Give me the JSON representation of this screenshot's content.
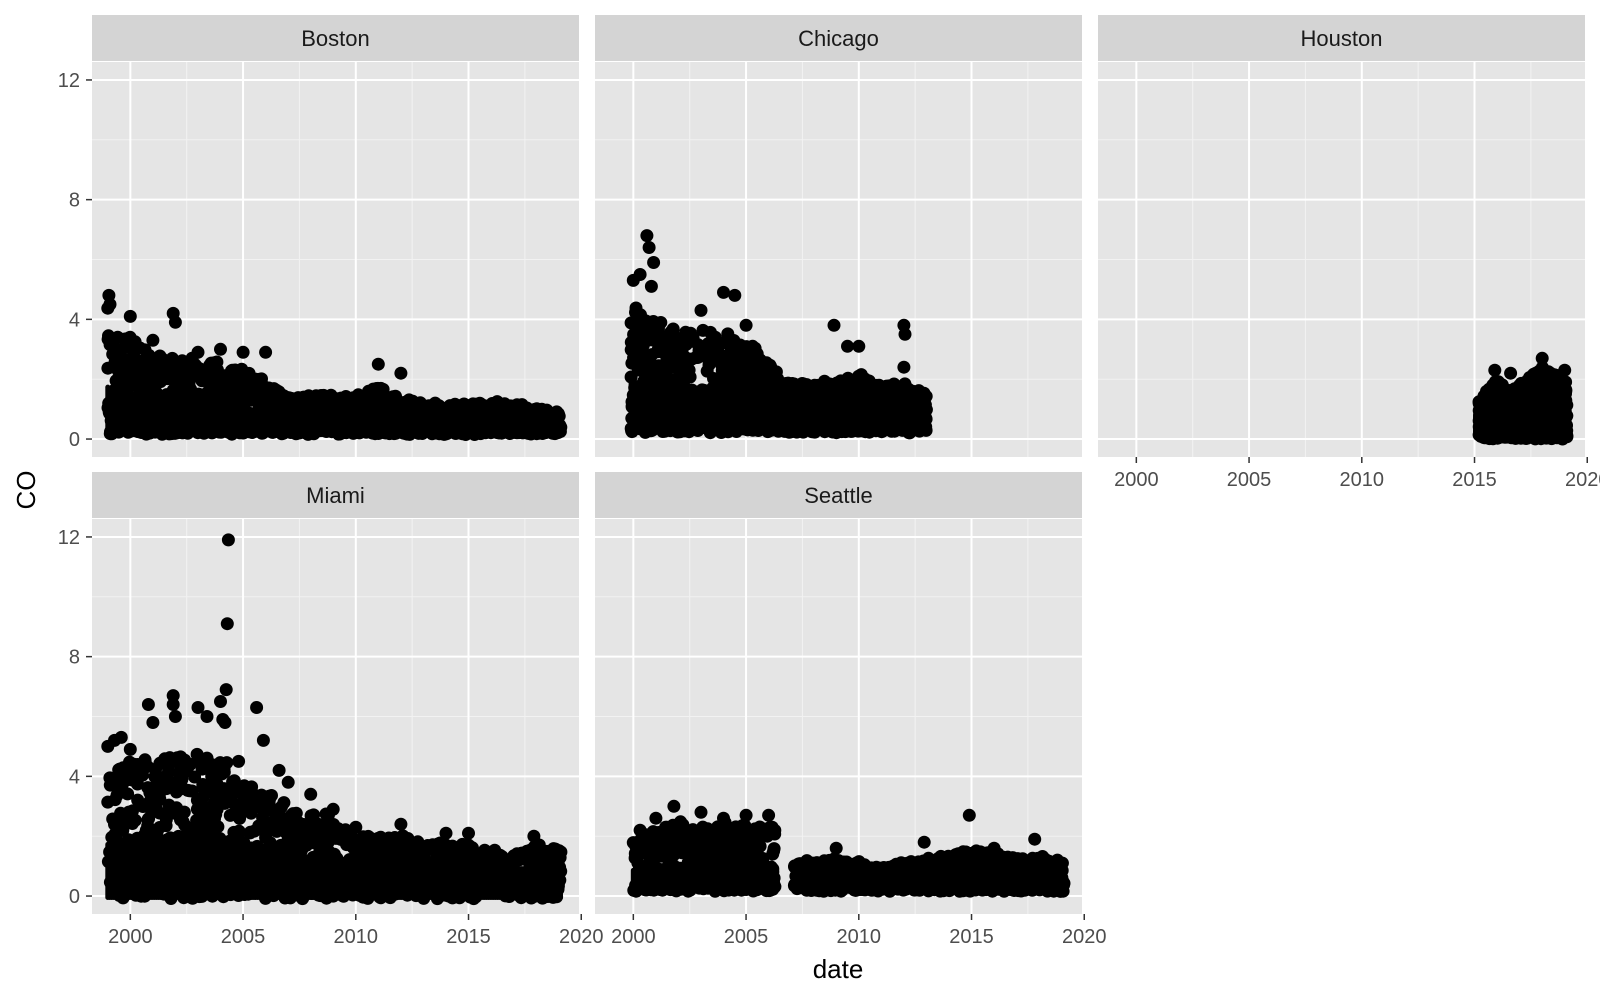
{
  "chart_data": {
    "type": "scatter",
    "layout": "facet_wrap",
    "title": "",
    "xlabel": "date",
    "ylabel": "CO",
    "xlim": [
      1998.3,
      2019.9
    ],
    "ylim": [
      -0.6,
      12.6
    ],
    "x_ticks": [
      2000,
      2005,
      2010,
      2015,
      2020
    ],
    "y_ticks": [
      0,
      4,
      8,
      12
    ],
    "grid": true,
    "point_color": "#000000",
    "panel_background": "#e5e5e5",
    "strip_background": "#d4d4d4",
    "grid_color": "#ffffff",
    "facets": [
      {
        "name": "Boston",
        "coverage": [
          1999.0,
          2019.1
        ],
        "baseline": [
          0.15,
          0.3
        ],
        "envelope": [
          [
            1999.0,
            4.4
          ],
          [
            1999.3,
            3.2
          ],
          [
            2000.0,
            3.4
          ],
          [
            2001.0,
            2.7
          ],
          [
            2002.0,
            2.6
          ],
          [
            2003.0,
            2.6
          ],
          [
            2004.0,
            2.5
          ],
          [
            2005.0,
            2.4
          ],
          [
            2006.0,
            2.0
          ],
          [
            2007.0,
            1.5
          ],
          [
            2008.0,
            1.4
          ],
          [
            2009.0,
            1.4
          ],
          [
            2010.0,
            1.4
          ],
          [
            2011.0,
            1.8
          ],
          [
            2012.0,
            1.4
          ],
          [
            2013.0,
            1.2
          ],
          [
            2014.0,
            1.1
          ],
          [
            2015.0,
            1.2
          ],
          [
            2016.0,
            1.2
          ],
          [
            2017.0,
            1.2
          ],
          [
            2018.0,
            1.0
          ],
          [
            2019.1,
            0.9
          ]
        ],
        "outliers": [
          [
            1999.05,
            4.8
          ],
          [
            1999.1,
            4.5
          ],
          [
            2000.0,
            4.1
          ],
          [
            2001.0,
            3.3
          ],
          [
            2001.9,
            4.2
          ],
          [
            2002.0,
            3.9
          ],
          [
            2003.0,
            2.9
          ],
          [
            2004.0,
            3.0
          ],
          [
            2005.0,
            2.9
          ],
          [
            2006.0,
            2.9
          ],
          [
            2011.0,
            2.5
          ],
          [
            2012.0,
            2.2
          ]
        ]
      },
      {
        "name": "Chicago",
        "coverage": [
          1999.9,
          2013.0
        ],
        "baseline": [
          0.2,
          0.5
        ],
        "envelope": [
          [
            1999.9,
            4.6
          ],
          [
            2000.5,
            4.2
          ],
          [
            2001.0,
            3.9
          ],
          [
            2002.0,
            3.5
          ],
          [
            2003.0,
            3.5
          ],
          [
            2004.0,
            3.5
          ],
          [
            2005.0,
            3.2
          ],
          [
            2006.0,
            2.5
          ],
          [
            2007.0,
            2.0
          ],
          [
            2008.0,
            1.8
          ],
          [
            2009.0,
            1.9
          ],
          [
            2010.0,
            2.2
          ],
          [
            2011.0,
            1.8
          ],
          [
            2012.0,
            1.9
          ],
          [
            2013.0,
            1.5
          ]
        ],
        "outliers": [
          [
            2000.0,
            5.3
          ],
          [
            2000.3,
            5.5
          ],
          [
            2000.6,
            6.8
          ],
          [
            2000.7,
            6.4
          ],
          [
            2000.9,
            5.9
          ],
          [
            2000.8,
            5.1
          ],
          [
            2003.0,
            4.3
          ],
          [
            2004.0,
            4.9
          ],
          [
            2004.5,
            4.8
          ],
          [
            2005.0,
            3.8
          ],
          [
            2008.9,
            3.8
          ],
          [
            2009.5,
            3.1
          ],
          [
            2010.0,
            3.1
          ],
          [
            2012.0,
            3.8
          ],
          [
            2012.05,
            3.5
          ],
          [
            2012.0,
            2.4
          ]
        ]
      },
      {
        "name": "Houston",
        "coverage": [
          2015.2,
          2019.1
        ],
        "baseline": [
          0.0,
          0.3
        ],
        "envelope": [
          [
            2015.2,
            1.2
          ],
          [
            2016.0,
            2.0
          ],
          [
            2016.5,
            1.6
          ],
          [
            2017.0,
            1.8
          ],
          [
            2018.0,
            2.4
          ],
          [
            2019.1,
            1.9
          ]
        ],
        "outliers": [
          [
            2015.9,
            2.3
          ],
          [
            2016.6,
            2.2
          ],
          [
            2018.0,
            2.7
          ],
          [
            2019.0,
            2.3
          ]
        ]
      },
      {
        "name": "Miami",
        "coverage": [
          1999.0,
          2019.1
        ],
        "baseline": [
          -0.1,
          0.5
        ],
        "envelope": [
          [
            1999.0,
            4.0
          ],
          [
            2000.0,
            4.5
          ],
          [
            2001.0,
            4.6
          ],
          [
            2002.0,
            4.7
          ],
          [
            2003.0,
            4.5
          ],
          [
            2004.0,
            4.5
          ],
          [
            2005.0,
            3.6
          ],
          [
            2006.0,
            3.3
          ],
          [
            2007.0,
            3.0
          ],
          [
            2008.0,
            2.7
          ],
          [
            2009.0,
            2.6
          ],
          [
            2010.0,
            2.0
          ],
          [
            2011.0,
            1.9
          ],
          [
            2012.0,
            2.0
          ],
          [
            2013.0,
            1.7
          ],
          [
            2014.0,
            1.7
          ],
          [
            2015.0,
            1.7
          ],
          [
            2016.0,
            1.5
          ],
          [
            2017.0,
            1.4
          ],
          [
            2018.0,
            1.7
          ],
          [
            2019.1,
            1.6
          ]
        ],
        "outliers": [
          [
            1999.0,
            5.0
          ],
          [
            1999.3,
            5.2
          ],
          [
            1999.6,
            5.3
          ],
          [
            2000.0,
            4.9
          ],
          [
            2000.8,
            6.4
          ],
          [
            2001.0,
            5.8
          ],
          [
            2001.9,
            6.7
          ],
          [
            2001.9,
            6.4
          ],
          [
            2002.0,
            6.0
          ],
          [
            2003.0,
            6.3
          ],
          [
            2003.4,
            6.0
          ],
          [
            2004.0,
            6.5
          ],
          [
            2004.1,
            5.9
          ],
          [
            2004.2,
            5.8
          ],
          [
            2004.25,
            6.9
          ],
          [
            2004.3,
            9.1
          ],
          [
            2004.35,
            11.9
          ],
          [
            2004.8,
            4.5
          ],
          [
            2005.6,
            6.3
          ],
          [
            2005.9,
            5.2
          ],
          [
            2006.6,
            4.2
          ],
          [
            2007.0,
            3.8
          ],
          [
            2008.0,
            3.4
          ],
          [
            2009.0,
            2.9
          ],
          [
            2010.0,
            2.3
          ],
          [
            2012.0,
            2.4
          ],
          [
            2014.0,
            2.1
          ],
          [
            2015.0,
            2.1
          ],
          [
            2017.9,
            2.0
          ]
        ]
      },
      {
        "name": "Seattle",
        "coverage": [
          2000.0,
          2019.1
        ],
        "gap": [
          2006.3,
          2007.1
        ],
        "baseline": [
          0.15,
          0.35
        ],
        "envelope": [
          [
            2000.0,
            1.8
          ],
          [
            2001.0,
            2.2
          ],
          [
            2002.0,
            2.4
          ],
          [
            2003.0,
            2.2
          ],
          [
            2004.0,
            2.4
          ],
          [
            2005.0,
            2.3
          ],
          [
            2006.3,
            2.2
          ],
          [
            2007.1,
            1.2
          ],
          [
            2008.0,
            1.1
          ],
          [
            2009.0,
            1.2
          ],
          [
            2010.0,
            1.1
          ],
          [
            2011.0,
            0.9
          ],
          [
            2012.0,
            1.1
          ],
          [
            2013.0,
            1.2
          ],
          [
            2014.0,
            1.3
          ],
          [
            2015.0,
            1.6
          ],
          [
            2016.0,
            1.4
          ],
          [
            2017.0,
            1.2
          ],
          [
            2018.0,
            1.3
          ],
          [
            2019.1,
            1.1
          ]
        ],
        "outliers": [
          [
            2000.3,
            2.2
          ],
          [
            2001.0,
            2.6
          ],
          [
            2001.8,
            3.0
          ],
          [
            2003.0,
            2.8
          ],
          [
            2004.0,
            2.6
          ],
          [
            2005.0,
            2.7
          ],
          [
            2006.0,
            2.7
          ],
          [
            2009.0,
            1.6
          ],
          [
            2012.9,
            1.8
          ],
          [
            2014.9,
            2.7
          ],
          [
            2016.0,
            1.6
          ],
          [
            2017.8,
            1.9
          ]
        ]
      }
    ]
  }
}
